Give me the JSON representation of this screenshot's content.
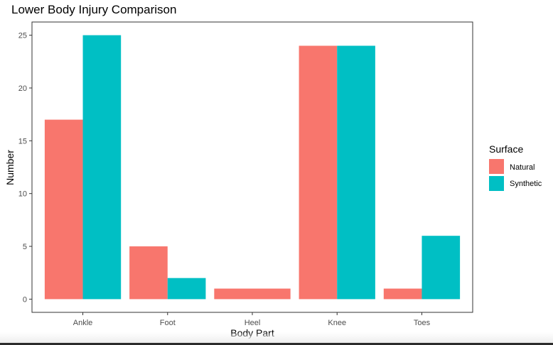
{
  "chart_data": {
    "type": "bar",
    "title": "Lower Body Injury Comparison",
    "xlabel": "Body Part",
    "ylabel": "Number",
    "categories": [
      "Ankle",
      "Foot",
      "Heel",
      "Knee",
      "Toes"
    ],
    "series": [
      {
        "name": "Natural",
        "color": "#F8766D",
        "values": [
          17,
          5,
          1,
          24,
          1
        ]
      },
      {
        "name": "Synthetic",
        "color": "#00BFC4",
        "values": [
          25,
          2,
          0,
          24,
          6
        ]
      }
    ],
    "ylim": [
      -1.25,
      26.25
    ],
    "yticks": [
      0,
      5,
      10,
      15,
      20,
      25
    ],
    "grid": false,
    "legend": {
      "title": "Surface",
      "position": "right"
    }
  }
}
